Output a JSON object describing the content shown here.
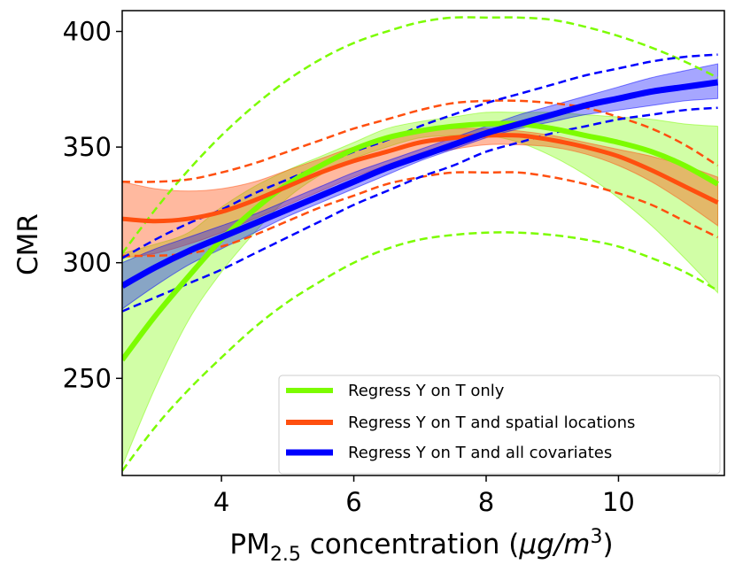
{
  "chart_data": {
    "type": "line",
    "xlabel_main": "PM",
    "xlabel_sub": "2.5",
    "xlabel_rest": " concentration (",
    "xlabel_unit_mu": "μ",
    "xlabel_unit_g": "g/",
    "xlabel_unit_m": "m",
    "xlabel_unit_exp": "3",
    "xlabel_close": ")",
    "ylabel": "CMR",
    "xlim": [
      2.5,
      11.6
    ],
    "ylim": [
      208,
      409
    ],
    "xticks": [
      4,
      6,
      8,
      10
    ],
    "xtick_labels": [
      "4",
      "6",
      "8",
      "10"
    ],
    "yticks": [
      250,
      300,
      350,
      400
    ],
    "ytick_labels": [
      "250",
      "300",
      "350",
      "400"
    ],
    "legend_position": "lower-right",
    "grid": false,
    "x": [
      2.5,
      3.0,
      3.5,
      4.0,
      4.5,
      5.0,
      5.5,
      6.0,
      6.5,
      7.0,
      7.5,
      8.0,
      8.5,
      9.0,
      9.5,
      10.0,
      10.5,
      11.0,
      11.5
    ],
    "series": [
      {
        "name": "Regress Y on T only",
        "color": "#7cfc00",
        "line_width": 6,
        "values": [
          258,
          277,
          294,
          310,
          323,
          334,
          342,
          349,
          354,
          357,
          359,
          360,
          360,
          358,
          355,
          352,
          348,
          342,
          334
        ],
        "band_lower": [
          212,
          246,
          275,
          296,
          313,
          328,
          338,
          345,
          350,
          354,
          355,
          355,
          352,
          346,
          338,
          328,
          316,
          302,
          287
        ],
        "band_upper": [
          304,
          308,
          313,
          324,
          333,
          340,
          346,
          352,
          358,
          361,
          363,
          365,
          365,
          365,
          364,
          363,
          362,
          360,
          359
        ],
        "dashed_lower": [
          210,
          229,
          245,
          259,
          272,
          283,
          292,
          300,
          306,
          310,
          312,
          313,
          313,
          312,
          310,
          307,
          302,
          296,
          288
        ],
        "dashed_upper": [
          304,
          323,
          340,
          355,
          368,
          379,
          388,
          395,
          400,
          404,
          406,
          406,
          406,
          405,
          402,
          398,
          393,
          387,
          380
        ]
      },
      {
        "name": "Regress Y on T and spatial locations",
        "color": "#ff4f0f",
        "line_width": 5,
        "values": [
          319,
          318,
          319,
          322,
          327,
          333,
          339,
          344,
          348,
          352,
          354,
          355,
          355,
          353,
          350,
          346,
          340,
          333,
          326
        ],
        "band_lower": [
          302,
          304,
          308,
          313,
          319,
          325,
          331,
          337,
          342,
          346,
          349,
          351,
          351,
          350,
          347,
          342,
          335,
          326,
          316
        ],
        "band_upper": [
          335,
          332,
          331,
          332,
          335,
          340,
          345,
          350,
          354,
          357,
          358,
          358,
          357,
          355,
          352,
          349,
          346,
          342,
          337
        ],
        "dashed_lower": [
          303,
          303,
          304,
          307,
          312,
          318,
          324,
          329,
          334,
          337,
          339,
          339,
          339,
          337,
          334,
          330,
          325,
          318,
          311
        ],
        "dashed_upper": [
          335,
          335,
          336,
          339,
          343,
          348,
          353,
          358,
          362,
          366,
          369,
          370,
          370,
          369,
          367,
          363,
          358,
          351,
          342
        ]
      },
      {
        "name": "Regress Y on T and all covariates",
        "color": "#0000ff",
        "line_width": 7,
        "values": [
          290,
          298,
          305,
          311,
          317,
          323,
          329,
          335,
          341,
          346,
          351,
          356,
          360,
          364,
          368,
          371,
          374,
          376,
          378
        ],
        "band_lower": [
          280,
          290,
          299,
          306,
          313,
          320,
          326,
          332,
          338,
          344,
          349,
          354,
          358,
          361,
          364,
          366,
          368,
          370,
          371
        ],
        "band_upper": [
          300,
          306,
          311,
          316,
          321,
          327,
          333,
          339,
          344,
          349,
          354,
          359,
          364,
          368,
          372,
          376,
          380,
          383,
          386
        ],
        "dashed_lower": [
          279,
          285,
          291,
          297,
          304,
          311,
          318,
          325,
          331,
          337,
          342,
          348,
          352,
          356,
          359,
          362,
          364,
          366,
          367
        ],
        "dashed_upper": [
          302,
          310,
          317,
          323,
          330,
          336,
          342,
          348,
          353,
          359,
          364,
          369,
          373,
          377,
          381,
          384,
          387,
          389,
          390
        ]
      }
    ]
  }
}
